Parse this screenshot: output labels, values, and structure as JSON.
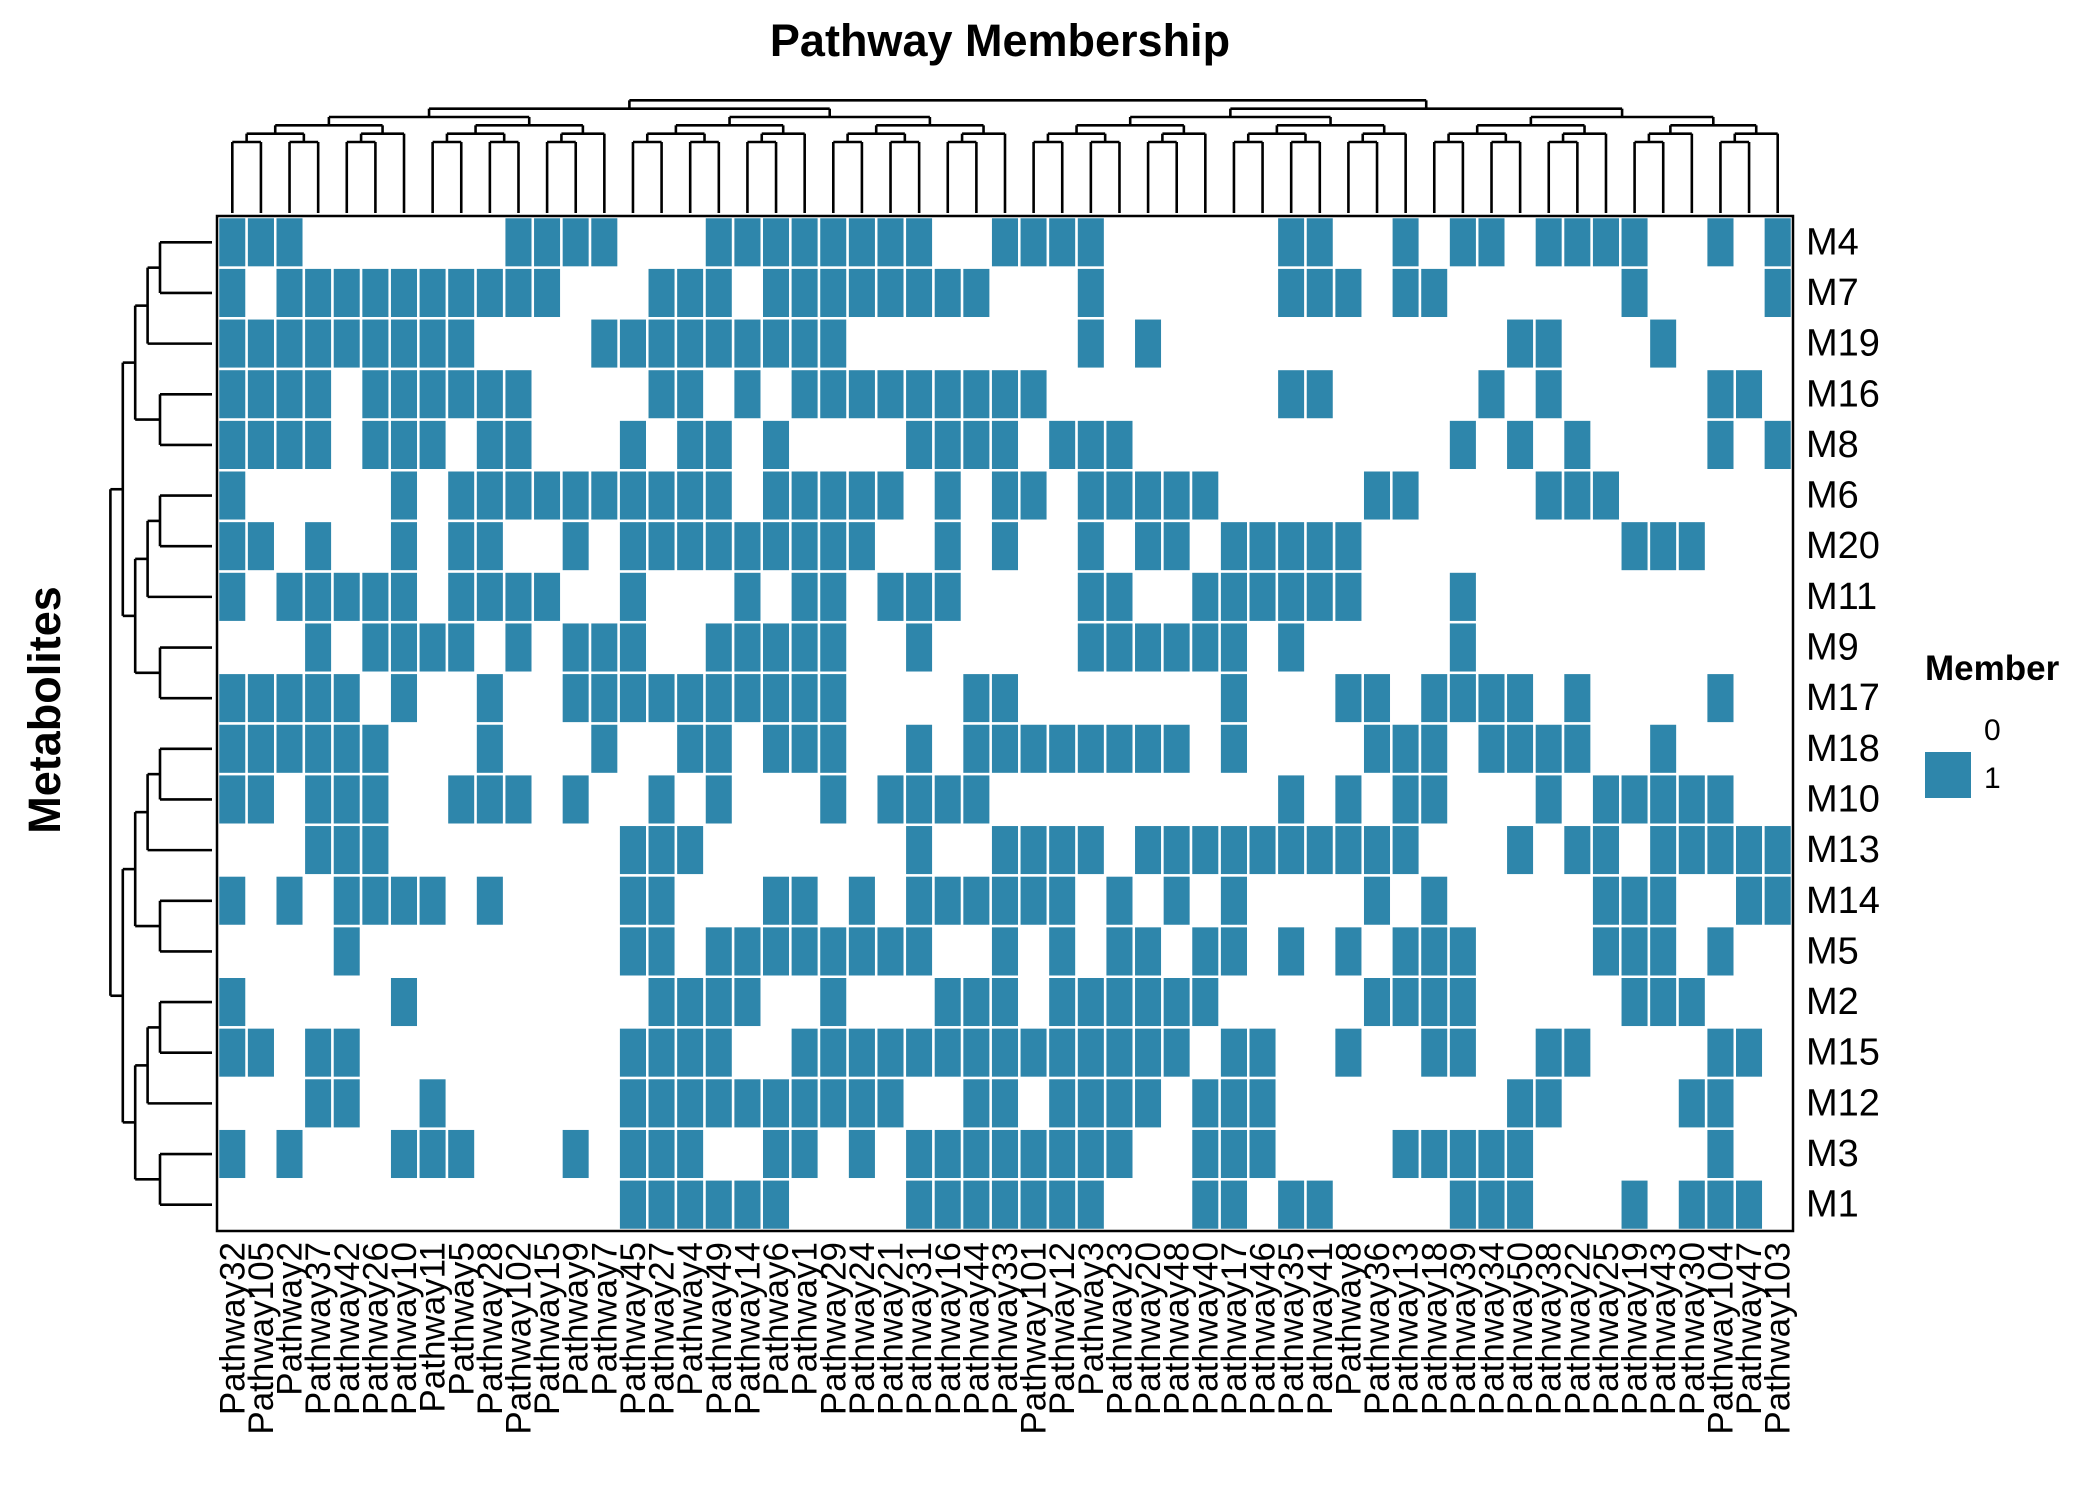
{
  "chart_data": {
    "type": "heatmap",
    "title": "Pathway Membership",
    "ylabel": "Metabolites",
    "xlabel": "",
    "legend": {
      "title": "Member",
      "levels": [
        "0",
        "1"
      ],
      "colors": [
        "#ffffff",
        "#2e86ab"
      ],
      "position": "right"
    },
    "columns": [
      "Pathway32",
      "Pathway105",
      "Pathway2",
      "Pathway37",
      "Pathway42",
      "Pathway26",
      "Pathway10",
      "Pathway11",
      "Pathway5",
      "Pathway28",
      "Pathway102",
      "Pathway15",
      "Pathway9",
      "Pathway7",
      "Pathway45",
      "Pathway27",
      "Pathway4",
      "Pathway49",
      "Pathway14",
      "Pathway6",
      "Pathway1",
      "Pathway29",
      "Pathway24",
      "Pathway21",
      "Pathway31",
      "Pathway16",
      "Pathway44",
      "Pathway33",
      "Pathway101",
      "Pathway12",
      "Pathway3",
      "Pathway23",
      "Pathway20",
      "Pathway48",
      "Pathway40",
      "Pathway17",
      "Pathway46",
      "Pathway35",
      "Pathway41",
      "Pathway8",
      "Pathway36",
      "Pathway13",
      "Pathway18",
      "Pathway39",
      "Pathway34",
      "Pathway50",
      "Pathway38",
      "Pathway22",
      "Pathway25",
      "Pathway19",
      "Pathway43",
      "Pathway30",
      "Pathway104",
      "Pathway47",
      "Pathway103"
    ],
    "rows": [
      "M4",
      "M7",
      "M19",
      "M16",
      "M8",
      "M6",
      "M20",
      "M11",
      "M9",
      "M17",
      "M18",
      "M10",
      "M13",
      "M14",
      "M5",
      "M2",
      "M15",
      "M12",
      "M3",
      "M1"
    ],
    "matrix": [
      "1110000000111100011111111001111000000110010110111100101",
      "1011111111110001110111111110001000000111011000000100001",
      "1111111110000111111111000000001010000000000001100010000",
      "1111011111100001101011111111100000000110000010100000110",
      "1111011101100010110100001111011100000000000101010000101",
      "1000001011111111110111110101101111100000110000111000000",
      "1101001011001011111111100101001011011111000000000111000",
      "1011111011110010001011011100001100111111000100000000000",
      "0001011110101110011111001000001111110100000100000000000",
      "1111101001001111111111000011000000010001101111010000100",
      "1111110001000100110111001011111111010000111011110010000",
      "1101110011101001010001011110000000000101011000101111100",
      "0001110000000011100000001001111011111111110001011011111",
      "1010111101000011000110101111110101010000101000001110011",
      "0000100000000011011111111001010110110101011100001110100",
      "1000001000000001111001000111011111100000111100000111000",
      "1101100000000011110011111111111111011001001100110000110",
      "0001100100000011111111110011011110111000000001100001100",
      "1010001110001011100110101111111100111000011111000000100",
      "0000000000000011111100001111111000110110000111000101110"
    ]
  }
}
